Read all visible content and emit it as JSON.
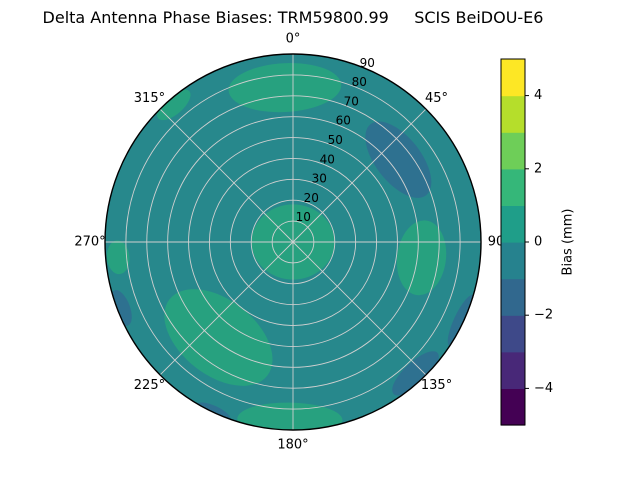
{
  "title": "Delta Antenna Phase Biases: TRM59800.99     SCIS BeiDOU-E6",
  "chart_data": {
    "type": "polar_contour",
    "title": "Delta Antenna Phase Biases: TRM59800.99     SCIS BeiDOU-E6",
    "azimuth_ticks": [
      {
        "angle_deg": 0,
        "label": "0°"
      },
      {
        "angle_deg": 45,
        "label": "45°"
      },
      {
        "angle_deg": 90,
        "label": "90"
      },
      {
        "angle_deg": 135,
        "label": "135°"
      },
      {
        "angle_deg": 180,
        "label": "180°"
      },
      {
        "angle_deg": 225,
        "label": "225°"
      },
      {
        "angle_deg": 270,
        "label": "270°"
      },
      {
        "angle_deg": 315,
        "label": "315°"
      }
    ],
    "radial_ticks": [
      10,
      20,
      30,
      40,
      50,
      60,
      70,
      80,
      90
    ],
    "radial_max": 90,
    "radial_label_angle_deg": 22.5,
    "grid_color": "#d0d0d0",
    "outline_color": "#000000",
    "base_color": "#27888c",
    "base_value_mm": "0 to 1",
    "patches": [
      {
        "value_mm": "1 to 2",
        "color": "#27a17f",
        "az_deg": 357,
        "r": 74,
        "rx": 0.3,
        "ry": 0.13
      },
      {
        "value_mm": "1 to 2",
        "color": "#27a17f",
        "az_deg": 0,
        "r": 0,
        "rx": 0.22,
        "ry": 0.2
      },
      {
        "value_mm": "1 to 2",
        "color": "#27a17f",
        "az_deg": 218,
        "r": 58,
        "rx": 0.33,
        "ry": 0.2
      },
      {
        "value_mm": "1 to 2",
        "color": "#27a17f",
        "az_deg": 181,
        "r": 85,
        "rx": 0.28,
        "ry": 0.09
      },
      {
        "value_mm": "1 to 2",
        "color": "#27a17f",
        "az_deg": 97,
        "r": 62,
        "rx": 0.2,
        "ry": 0.13
      },
      {
        "value_mm": "1 to 2",
        "color": "#27a17f",
        "az_deg": 319,
        "r": 87,
        "rx": 0.11,
        "ry": 0.05
      },
      {
        "value_mm": "1 to 2",
        "color": "#27a17f",
        "az_deg": 265,
        "r": 84,
        "rx": 0.09,
        "ry": 0.06
      },
      {
        "value_mm": "-1 to 0",
        "color": "#2e7190",
        "az_deg": 137,
        "r": 86,
        "rx": 0.16,
        "ry": 0.06
      },
      {
        "value_mm": "-1 to 0",
        "color": "#2e7190",
        "az_deg": 249,
        "r": 88,
        "rx": 0.1,
        "ry": 0.045
      },
      {
        "value_mm": "-1 to 0",
        "color": "#2e7190",
        "az_deg": 52,
        "r": 64,
        "rx": 0.24,
        "ry": 0.12
      },
      {
        "value_mm": "-1 to 0",
        "color": "#2e7190",
        "az_deg": 115,
        "r": 89,
        "rx": 0.15,
        "ry": 0.04
      },
      {
        "value_mm": "-1 to 0",
        "color": "#2e7190",
        "az_deg": 205,
        "r": 90,
        "rx": 0.1,
        "ry": 0.035
      }
    ],
    "colorbar": {
      "label": "Bias (mm)",
      "min": -5,
      "max": 5,
      "ticks": [
        {
          "value": 4,
          "label": "4"
        },
        {
          "value": 2,
          "label": "2"
        },
        {
          "value": 0,
          "label": "0"
        },
        {
          "value": -2,
          "label": "−2"
        },
        {
          "value": -4,
          "label": "−4"
        }
      ],
      "band_colors_bottom_to_top": [
        "#440154",
        "#482878",
        "#3e4989",
        "#31688e",
        "#26828e",
        "#1f9e89",
        "#35b779",
        "#6ece58",
        "#b5de2b",
        "#fde725"
      ]
    }
  }
}
